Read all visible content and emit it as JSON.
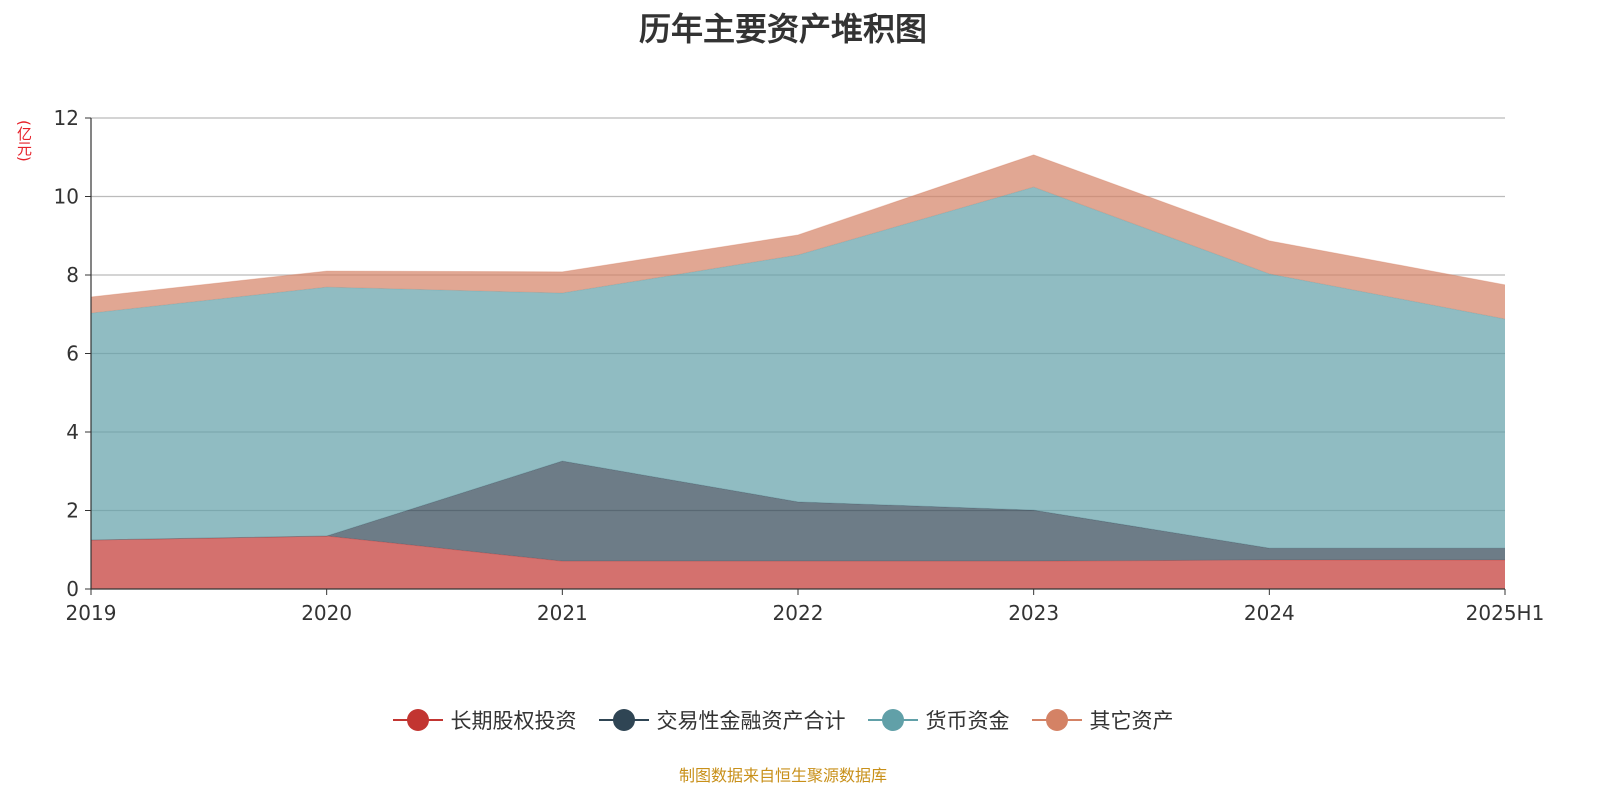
{
  "chart_data": {
    "type": "area",
    "stacked": true,
    "title": "历年主要资产堆积图",
    "ylabel": "(亿元)",
    "xlabel": "",
    "categories": [
      "2019",
      "2020",
      "2021",
      "2022",
      "2023",
      "2024",
      "2025H1"
    ],
    "ylim": [
      0,
      12
    ],
    "yticks": [
      0,
      2,
      4,
      6,
      8,
      10,
      12
    ],
    "grid": true,
    "legend_position": "bottom",
    "series": [
      {
        "name": "长期股权投资",
        "color": "#c23531",
        "values": [
          1.25,
          1.35,
          0.71,
          0.71,
          0.71,
          0.74,
          0.74
        ]
      },
      {
        "name": "交易性金融资产合计",
        "color": "#2f4554",
        "values": [
          0,
          0,
          2.55,
          1.51,
          1.3,
          0.3,
          0.3
        ]
      },
      {
        "name": "货币资金",
        "color": "#61a0a8",
        "values": [
          5.78,
          6.34,
          4.28,
          6.29,
          8.23,
          6.99,
          5.84
        ]
      },
      {
        "name": "其它资产",
        "color": "#d48265",
        "values": [
          0.41,
          0.41,
          0.54,
          0.51,
          0.82,
          0.84,
          0.87
        ]
      }
    ]
  },
  "source": "制图数据来自恒生聚源数据库"
}
